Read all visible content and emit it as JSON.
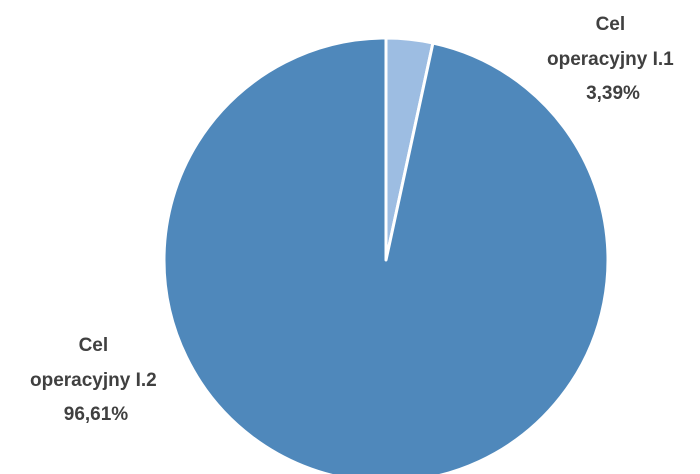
{
  "chart_data": {
    "type": "pie",
    "title": "",
    "start_angle_deg": 0,
    "direction": "clockwise",
    "slices": [
      {
        "label_lines": [
          "Cel",
          "operacyjny I.1",
          "3,39%"
        ],
        "name": "Cel operacyjny I.1",
        "value": 3.39,
        "percent_label": "3,39%",
        "color": "#9DBDE2"
      },
      {
        "label_lines": [
          "Cel",
          "operacyjny I.2",
          "96,61%"
        ],
        "name": "Cel operacyjny I.2",
        "value": 96.61,
        "percent_label": "96,61%",
        "color": "#4F88BB"
      }
    ],
    "legend": "none",
    "slice_border_color": "#ffffff"
  }
}
